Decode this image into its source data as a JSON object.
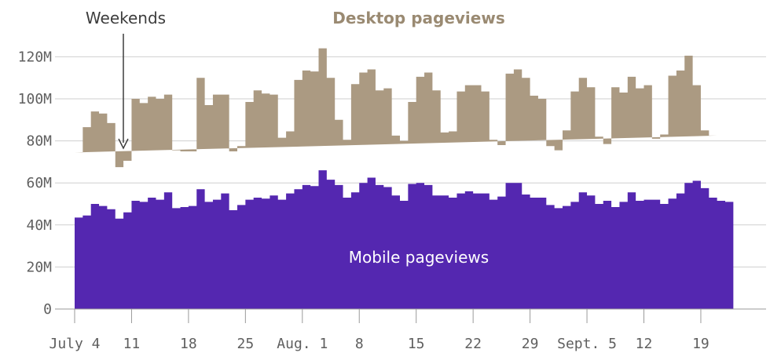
{
  "chart_data": {
    "type": "area",
    "stacked": true,
    "x_start": "July 4",
    "y_ticks": [
      0,
      20,
      40,
      60,
      80,
      100,
      120
    ],
    "y_tick_labels": [
      "0",
      "20M",
      "40M",
      "60M",
      "80M",
      "100M",
      "120M"
    ],
    "ylim": [
      0,
      130
    ],
    "y_unit": "M",
    "x_ticks": [
      {
        "day": 0,
        "label": "July 4"
      },
      {
        "day": 7,
        "label": "11"
      },
      {
        "day": 14,
        "label": "18"
      },
      {
        "day": 21,
        "label": "25"
      },
      {
        "day": 28,
        "label": "Aug. 1"
      },
      {
        "day": 35,
        "label": "8"
      },
      {
        "day": 42,
        "label": "15"
      },
      {
        "day": 49,
        "label": "22"
      },
      {
        "day": 56,
        "label": "29"
      },
      {
        "day": 63,
        "label": "Sept. 5"
      },
      {
        "day": 70,
        "label": "12"
      },
      {
        "day": 77,
        "label": "19"
      }
    ],
    "series": [
      {
        "name": "Mobile pageviews",
        "color": "#5427b0",
        "values": [
          43.5,
          44.5,
          50,
          49,
          47.5,
          43,
          46,
          51.5,
          51,
          53,
          52,
          55.5,
          48,
          48.5,
          49,
          57,
          51,
          52,
          55,
          47,
          49.5,
          52,
          53,
          52.5,
          54,
          52,
          55,
          57,
          59,
          58.5,
          66,
          61.5,
          59,
          53,
          55.5,
          60,
          62.5,
          59,
          58,
          54,
          51.5,
          59.5,
          60,
          59,
          54,
          54,
          53,
          55,
          56,
          55,
          55,
          52,
          53.5,
          60,
          60,
          54.5,
          53,
          53,
          49.5,
          48,
          49,
          51,
          55.5,
          54,
          50,
          51.5,
          48.5,
          51,
          55.5,
          51.5,
          52,
          52,
          50,
          52.5,
          55,
          60,
          61,
          57.5,
          53,
          51.5,
          51
        ]
      },
      {
        "name": "Desktop pageviews",
        "color": "#ab9a82",
        "values": [
          31,
          42,
          44,
          44,
          41,
          24.5,
          24.5,
          48.5,
          47,
          48,
          48,
          46.5,
          27.5,
          26.5,
          26,
          53,
          46,
          50,
          47,
          28,
          28,
          46.5,
          51,
          50,
          48,
          29.5,
          29.5,
          52,
          54.5,
          54.5,
          58,
          48.5,
          31,
          27.5,
          51.5,
          52.5,
          51.5,
          45,
          47,
          28.5,
          28.5,
          39,
          50.5,
          53.5,
          50,
          30,
          31.5,
          48.5,
          50.5,
          51.5,
          48.5,
          28.5,
          24.5,
          52,
          54,
          55.5,
          48.5,
          47,
          28,
          27.5,
          36,
          52.5,
          54.5,
          51.5,
          32,
          27,
          57,
          52,
          55,
          53.5,
          54.5,
          29,
          33,
          58.5,
          58.5,
          60.5,
          45.5,
          27.5,
          29.5
        ]
      }
    ],
    "annotations": [
      {
        "text": "Weekends",
        "type": "arrow"
      },
      {
        "text": "Desktop pageviews",
        "type": "series-label"
      },
      {
        "text": "Mobile pageviews",
        "type": "series-label"
      }
    ],
    "grid": true
  }
}
